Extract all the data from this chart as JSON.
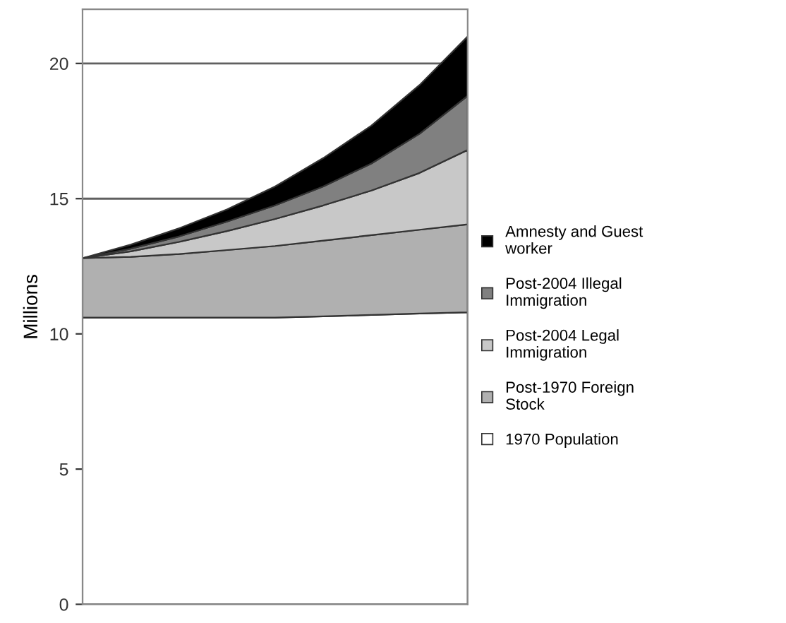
{
  "chart_data": {
    "type": "area",
    "stacked": true,
    "ylabel": "Millions",
    "categories": [
      null,
      null,
      null,
      null,
      null,
      null,
      null,
      null,
      null
    ],
    "series": [
      {
        "name": "1970 Population",
        "color": "#ffffff",
        "values": [
          10.6,
          10.6,
          10.6,
          10.6,
          10.6,
          10.65,
          10.7,
          10.75,
          10.8
        ]
      },
      {
        "name": "Post-1970 Foreign Stock",
        "color": "#b0b0b0",
        "values": [
          2.2,
          2.25,
          2.35,
          2.5,
          2.65,
          2.8,
          2.95,
          3.1,
          3.25
        ]
      },
      {
        "name": "Post-2004 Legal Immigration",
        "color": "#c8c8c8",
        "values": [
          0,
          0.2,
          0.45,
          0.7,
          1.0,
          1.3,
          1.65,
          2.1,
          2.75
        ]
      },
      {
        "name": "Post-2004 Illegal Immigration",
        "color": "#808080",
        "values": [
          0,
          0.1,
          0.2,
          0.35,
          0.5,
          0.7,
          1.0,
          1.45,
          2.0
        ]
      },
      {
        "name": "Amnesty and Guest worker",
        "color": "#000000",
        "values": [
          0,
          0.15,
          0.3,
          0.45,
          0.7,
          1.05,
          1.4,
          1.8,
          2.2
        ]
      }
    ],
    "ylim": [
      0,
      22
    ],
    "yticks": [
      0,
      5,
      10,
      15,
      20
    ],
    "grid": "y",
    "legend": "right",
    "tick_labels": "y"
  }
}
